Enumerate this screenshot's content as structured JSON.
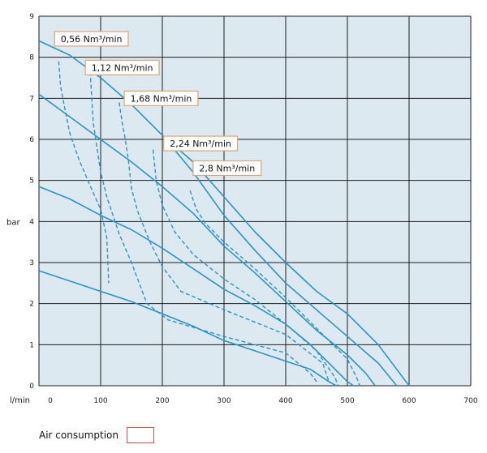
{
  "chart_data": {
    "type": "line",
    "title": "",
    "xlabel": "l/min",
    "ylabel": "bar",
    "xlim": [
      0,
      700
    ],
    "ylim": [
      0,
      9
    ],
    "x_ticks": [
      "0",
      "100",
      "200",
      "300",
      "400",
      "500",
      "600",
      "700"
    ],
    "y_ticks": [
      "0",
      "1",
      "2",
      "3",
      "4",
      "5",
      "6",
      "7",
      "8",
      "9"
    ],
    "grid": true,
    "colors": {
      "plot_bg": "#dce9f1",
      "grid": "#1e1e1e",
      "curve": "#2a95c2",
      "label_border": "#e0a36b"
    },
    "solid_series": [
      {
        "points": [
          [
            0,
            2.8
          ],
          [
            50,
            2.55
          ],
          [
            100,
            2.3
          ],
          [
            150,
            2.05
          ],
          [
            200,
            1.75
          ],
          [
            250,
            1.45
          ],
          [
            300,
            1.1
          ],
          [
            350,
            0.85
          ],
          [
            400,
            0.6
          ],
          [
            440,
            0.4
          ],
          [
            470,
            0.1
          ],
          [
            482,
            0
          ]
        ]
      },
      {
        "points": [
          [
            0,
            4.85
          ],
          [
            50,
            4.55
          ],
          [
            100,
            4.15
          ],
          [
            150,
            3.8
          ],
          [
            200,
            3.35
          ],
          [
            250,
            2.85
          ],
          [
            300,
            2.35
          ],
          [
            350,
            1.95
          ],
          [
            400,
            1.5
          ],
          [
            440,
            1.0
          ],
          [
            470,
            0.55
          ],
          [
            500,
            0.1
          ],
          [
            510,
            0
          ]
        ]
      },
      {
        "points": [
          [
            0,
            7.1
          ],
          [
            50,
            6.55
          ],
          [
            100,
            6.0
          ],
          [
            150,
            5.45
          ],
          [
            200,
            4.85
          ],
          [
            250,
            4.2
          ],
          [
            300,
            3.4
          ],
          [
            350,
            2.75
          ],
          [
            400,
            2.05
          ],
          [
            450,
            1.35
          ],
          [
            500,
            0.75
          ],
          [
            530,
            0.3
          ],
          [
            545,
            0
          ]
        ]
      },
      {
        "points": [
          [
            0,
            8.4
          ],
          [
            50,
            8.05
          ],
          [
            100,
            7.5
          ],
          [
            150,
            6.85
          ],
          [
            200,
            6.1
          ],
          [
            250,
            5.2
          ],
          [
            300,
            4.15
          ],
          [
            350,
            3.3
          ],
          [
            400,
            2.5
          ],
          [
            450,
            1.85
          ],
          [
            500,
            1.2
          ],
          [
            550,
            0.55
          ],
          [
            580,
            0
          ]
        ]
      },
      {
        "points": [
          [
            200,
            6.1
          ],
          [
            250,
            5.45
          ],
          [
            300,
            4.6
          ],
          [
            350,
            3.75
          ],
          [
            400,
            3.0
          ],
          [
            450,
            2.3
          ],
          [
            500,
            1.75
          ],
          [
            550,
            1.0
          ],
          [
            580,
            0.4
          ],
          [
            600,
            0
          ]
        ]
      }
    ],
    "dashed_series": [
      {
        "name": "0,56 Nm³/min",
        "points": [
          [
            32,
            7.9
          ],
          [
            35,
            7.3
          ],
          [
            40,
            6.9
          ],
          [
            50,
            6.15
          ],
          [
            65,
            5.5
          ],
          [
            85,
            4.8
          ],
          [
            100,
            4.3
          ],
          [
            110,
            3.6
          ],
          [
            112,
            2.9
          ],
          [
            113,
            2.5
          ]
        ]
      },
      {
        "name": "1,12 Nm³/min",
        "points": [
          [
            83,
            7.65
          ],
          [
            88,
            6.4
          ],
          [
            100,
            5.2
          ],
          [
            110,
            4.6
          ],
          [
            130,
            3.7
          ],
          [
            150,
            3.0
          ],
          [
            160,
            2.6
          ],
          [
            175,
            2.0
          ],
          [
            210,
            1.6
          ],
          [
            300,
            1.2
          ],
          [
            400,
            0.8
          ],
          [
            440,
            0.3
          ],
          [
            450,
            0.1
          ]
        ]
      },
      {
        "name": "1,68 Nm³/min",
        "points": [
          [
            130,
            6.9
          ],
          [
            135,
            6.4
          ],
          [
            140,
            6.0
          ],
          [
            145,
            5.5
          ],
          [
            150,
            4.8
          ],
          [
            160,
            4.25
          ],
          [
            180,
            3.5
          ],
          [
            200,
            2.9
          ],
          [
            230,
            2.3
          ],
          [
            300,
            1.85
          ],
          [
            400,
            1.25
          ],
          [
            460,
            0.55
          ],
          [
            470,
            0.1
          ]
        ]
      },
      {
        "name": "2,24 Nm³/min",
        "points": [
          [
            185,
            5.75
          ],
          [
            190,
            5.0
          ],
          [
            200,
            4.4
          ],
          [
            220,
            3.75
          ],
          [
            250,
            3.2
          ],
          [
            300,
            2.6
          ],
          [
            350,
            2.1
          ],
          [
            400,
            1.5
          ],
          [
            450,
            0.85
          ],
          [
            480,
            0.2
          ],
          [
            485,
            0
          ]
        ]
      },
      {
        "name": "2,8 Nm³/min",
        "points": [
          [
            245,
            4.75
          ],
          [
            255,
            4.3
          ],
          [
            270,
            3.95
          ],
          [
            300,
            3.5
          ],
          [
            350,
            2.85
          ],
          [
            400,
            2.15
          ],
          [
            450,
            1.4
          ],
          [
            500,
            0.65
          ],
          [
            515,
            0.2
          ],
          [
            520,
            0
          ]
        ]
      }
    ],
    "labels": [
      {
        "text": "0,56 Nm³/min",
        "x": 85,
        "y": 8.45
      },
      {
        "text": "1,12 Nm³/min",
        "x": 135,
        "y": 7.75
      },
      {
        "text": "1,68 Nm³/min",
        "x": 198,
        "y": 7.0
      },
      {
        "text": "2,24 Nm³/min",
        "x": 262,
        "y": 5.9
      },
      {
        "text": "2,8 Nm³/min",
        "x": 305,
        "y": 5.3
      }
    ]
  },
  "legend": {
    "label": "Air consumption",
    "swatch_color": "#d9544f"
  }
}
